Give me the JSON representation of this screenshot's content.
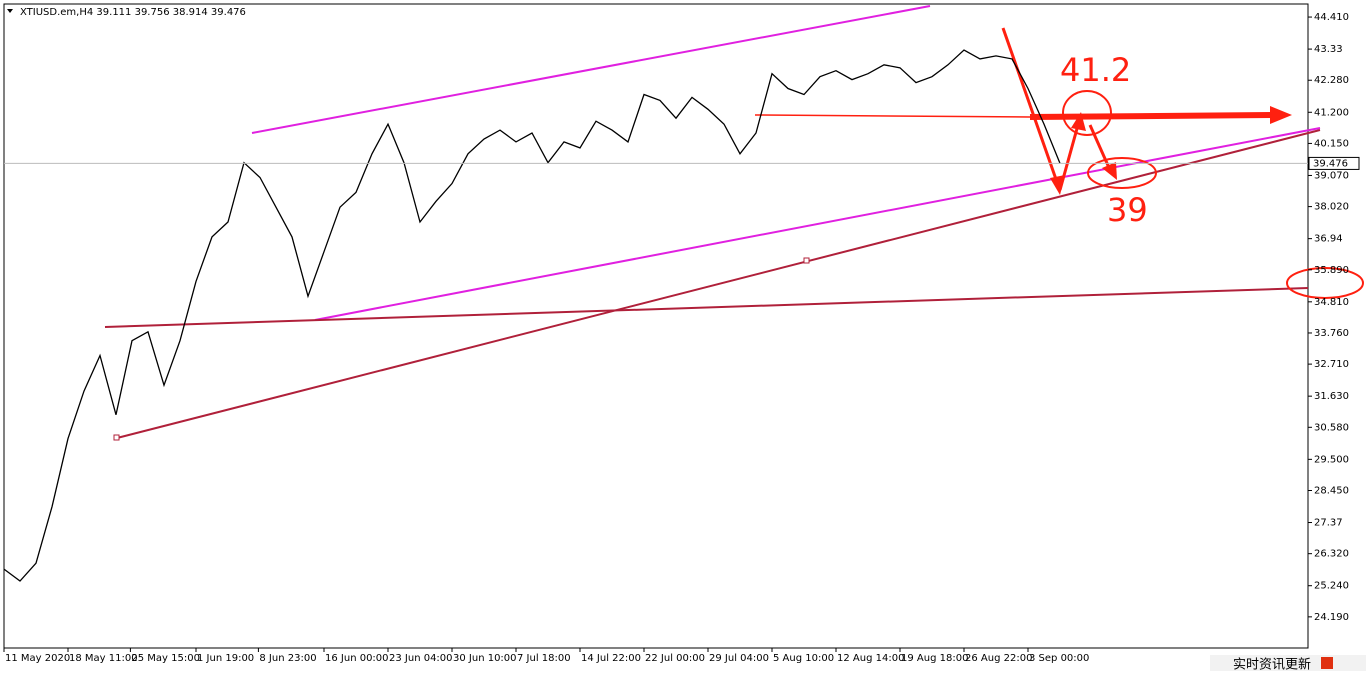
{
  "chart_data": {
    "type": "line",
    "title": "XTIUSD.em,H4  39.111 39.756 38.914 39.476",
    "x": [
      0,
      1,
      2,
      3,
      4,
      5,
      6,
      7,
      8,
      9,
      10,
      11,
      12,
      13,
      14,
      15,
      16,
      17,
      18,
      19,
      20,
      21,
      22,
      23,
      24,
      25,
      26,
      27,
      28,
      29,
      30,
      31,
      32,
      33,
      34,
      35,
      36,
      37,
      38,
      39,
      40,
      41,
      42,
      43,
      44,
      45,
      46,
      47,
      48,
      49,
      50,
      51,
      52,
      53,
      54,
      55,
      56,
      57,
      58,
      59,
      60,
      61,
      62,
      63,
      64,
      65,
      66
    ],
    "series": [
      {
        "color": "#000000",
        "values": [
          25.8,
          25.4,
          26.0,
          27.9,
          30.2,
          31.8,
          33.0,
          31.0,
          33.5,
          33.8,
          32.0,
          33.5,
          35.5,
          37.0,
          37.5,
          39.5,
          39.0,
          38.0,
          37.0,
          35.0,
          36.5,
          38.0,
          38.5,
          39.8,
          40.8,
          39.5,
          37.5,
          38.2,
          38.8,
          39.8,
          40.3,
          40.6,
          40.2,
          40.5,
          39.5,
          40.2,
          40.0,
          40.9,
          40.6,
          40.2,
          41.8,
          41.6,
          41.0,
          41.7,
          41.3,
          40.8,
          39.8,
          40.5,
          42.5,
          42.0,
          41.8,
          42.4,
          42.6,
          42.3,
          42.5,
          42.8,
          42.7,
          42.2,
          42.4,
          42.8,
          43.3,
          43.0,
          43.1,
          43.0,
          42.0,
          40.8,
          39.476
        ]
      }
    ],
    "xlim": [
      0,
      81.5
    ],
    "xticks": [
      {
        "value": 0,
        "label": "11 May 2020"
      },
      {
        "value": 4,
        "label": "18 May 11:00"
      },
      {
        "value": 7.9,
        "label": "25 May 15:00"
      },
      {
        "value": 12,
        "label": "1 Jun 19:00"
      },
      {
        "value": 15.9,
        "label": "8 Jun 23:00"
      },
      {
        "value": 20,
        "label": "16 Jun 00:00"
      },
      {
        "value": 24,
        "label": "23 Jun 04:00"
      },
      {
        "value": 28,
        "label": "30 Jun 10:00"
      },
      {
        "value": 32,
        "label": "7 Jul 18:00"
      },
      {
        "value": 36,
        "label": "14 Jul 22:00"
      },
      {
        "value": 40,
        "label": "22 Jul 00:00"
      },
      {
        "value": 44,
        "label": "29 Jul 04:00"
      },
      {
        "value": 48,
        "label": "5 Aug 10:00"
      },
      {
        "value": 52,
        "label": "12 Aug 14:00"
      },
      {
        "value": 56,
        "label": "19 Aug 18:00"
      },
      {
        "value": 60,
        "label": "26 Aug 22:00"
      },
      {
        "value": 64,
        "label": "3 Sep 00:00"
      }
    ],
    "ylim": [
      23.14,
      44.85
    ],
    "yticks": [
      {
        "value": 44.41,
        "label": "44.410"
      },
      43.33,
      {
        "value": 42.28,
        "label": "42.280"
      },
      {
        "value": 41.2,
        "label": "41.200"
      },
      {
        "value": 40.15,
        "label": "40.150"
      },
      {
        "value": 39.07,
        "label": "39.070"
      },
      {
        "value": 38.02,
        "label": "38.020"
      },
      36.94,
      {
        "value": 35.89,
        "label": "35.890"
      },
      {
        "value": 34.81,
        "label": "34.810"
      },
      {
        "value": 33.76,
        "label": "33.760"
      },
      {
        "value": 32.71,
        "label": "32.710"
      },
      {
        "value": 31.63,
        "label": "31.630"
      },
      {
        "value": 30.58,
        "label": "30.580"
      },
      {
        "value": 29.5,
        "label": "29.500"
      },
      {
        "value": 28.45,
        "label": "28.450"
      },
      27.37,
      {
        "value": 26.32,
        "label": "26.320"
      },
      {
        "value": 25.24,
        "label": "25.240"
      },
      {
        "value": 24.19,
        "label": "24.190"
      }
    ],
    "last_price": 39.476,
    "grid": false,
    "annotations": [
      "41.2",
      "39"
    ]
  },
  "status_text": "实时资讯更新"
}
